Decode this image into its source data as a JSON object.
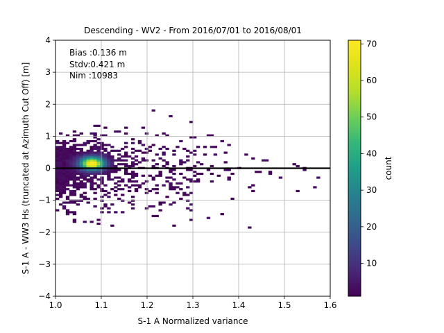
{
  "chart_data": {
    "type": "heatmap",
    "title": "Descending - WV2 - From 2016/07/01 to 2016/08/01",
    "xlabel": "S-1 A Normalized variance",
    "ylabel": "S-1 A - WW3 Hs (truncated at Azimuth Cut Off) [m]",
    "xlim": [
      1.0,
      1.6
    ],
    "ylim": [
      -4,
      4
    ],
    "x_ticks": [
      "1.0",
      "1.1",
      "1.2",
      "1.3",
      "1.4",
      "1.5",
      "1.6"
    ],
    "y_ticks": [
      "4",
      "3",
      "2",
      "1",
      "0",
      "−1",
      "−2",
      "−3",
      "−4"
    ],
    "grid": true,
    "reference_line_y": 0,
    "annotations": [
      "Bias :0.136 m",
      "Stdv:0.421 m",
      "Nim :10983"
    ],
    "colorbar": {
      "label": "count",
      "range": [
        1,
        71
      ],
      "ticks": [
        "10",
        "20",
        "30",
        "40",
        "50",
        "60",
        "70"
      ],
      "colormap": "viridis"
    },
    "density_peak": {
      "x": 1.08,
      "y": 0.15,
      "count": 70
    }
  }
}
